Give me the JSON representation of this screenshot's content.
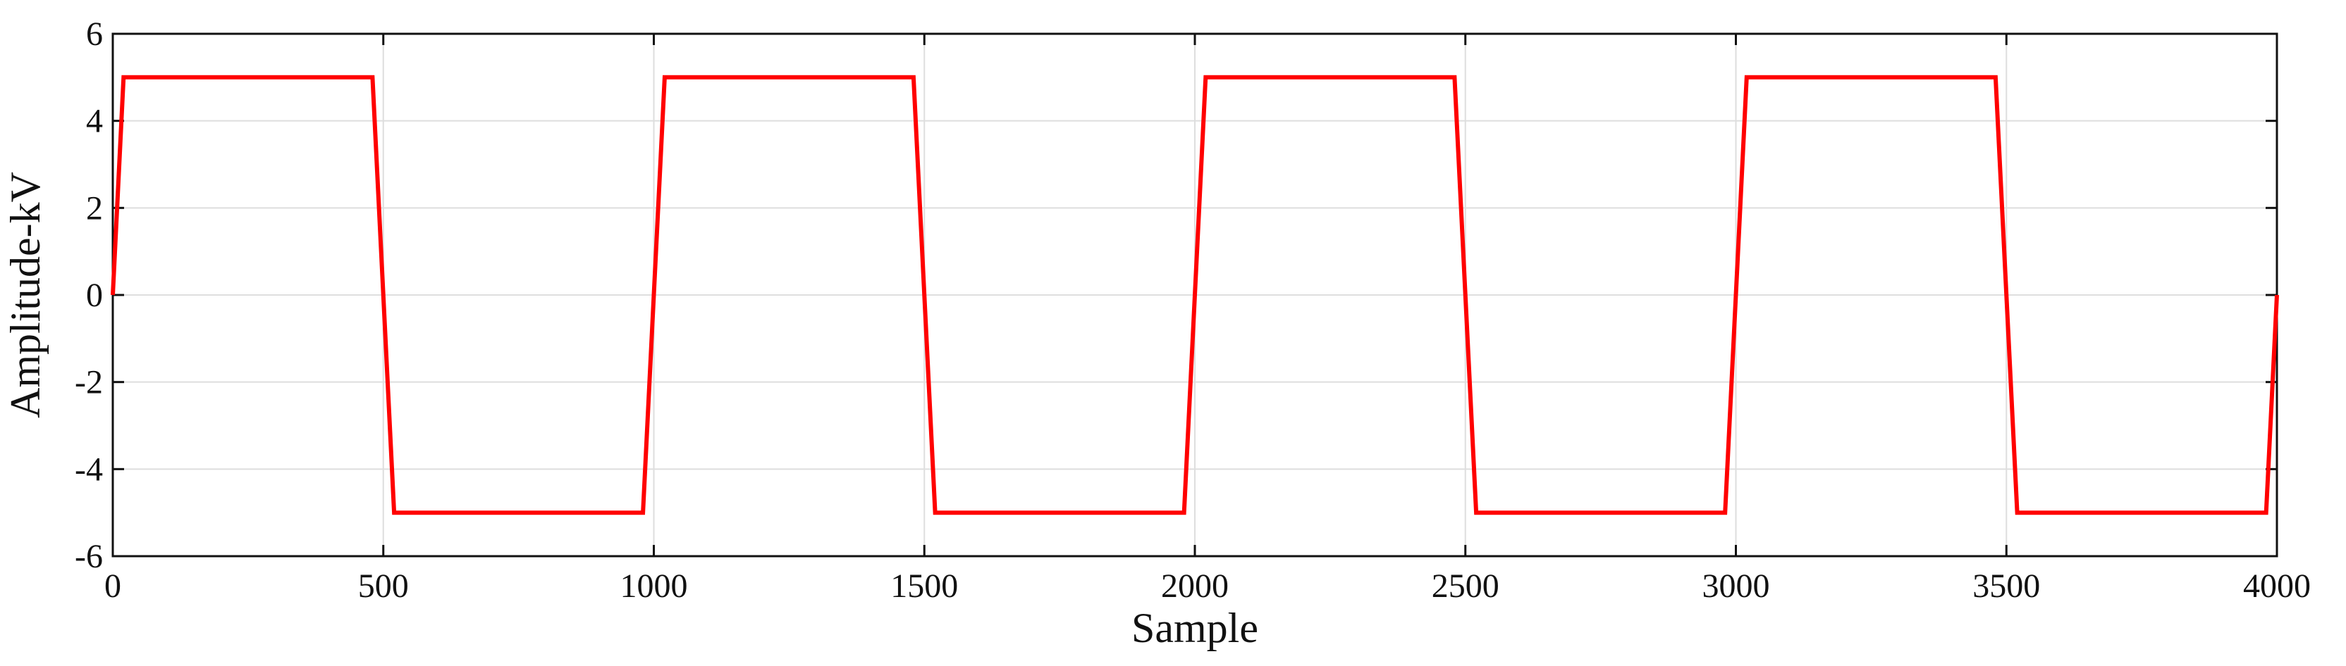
{
  "chart_data": {
    "type": "line",
    "title": "",
    "xlabel": "Sample",
    "ylabel": "Amplitude-kV",
    "xlim": [
      0,
      4000
    ],
    "ylim": [
      -6,
      6
    ],
    "grid": true,
    "xticks": [
      0,
      500,
      1000,
      1500,
      2000,
      2500,
      3000,
      3500,
      4000
    ],
    "xtick_labels": [
      "0",
      "500",
      "1000",
      "1500",
      "2000",
      "2500",
      "3000",
      "3500",
      "4000"
    ],
    "yticks": [
      -6,
      -4,
      -2,
      0,
      2,
      4,
      6
    ],
    "ytick_labels": [
      "-6",
      "-4",
      "-2",
      "0",
      "2",
      "4",
      "6"
    ],
    "series": [
      {
        "color": "#ff0000",
        "x": [
          0,
          20,
          480,
          520,
          980,
          1020,
          1480,
          1520,
          1980,
          2020,
          2480,
          2520,
          2980,
          3020,
          3480,
          3520,
          3980,
          4000
        ],
        "y": [
          0,
          5,
          5,
          -5,
          -5,
          5,
          5,
          -5,
          -5,
          5,
          5,
          -5,
          -5,
          5,
          5,
          -5,
          -5,
          0
        ]
      }
    ]
  }
}
